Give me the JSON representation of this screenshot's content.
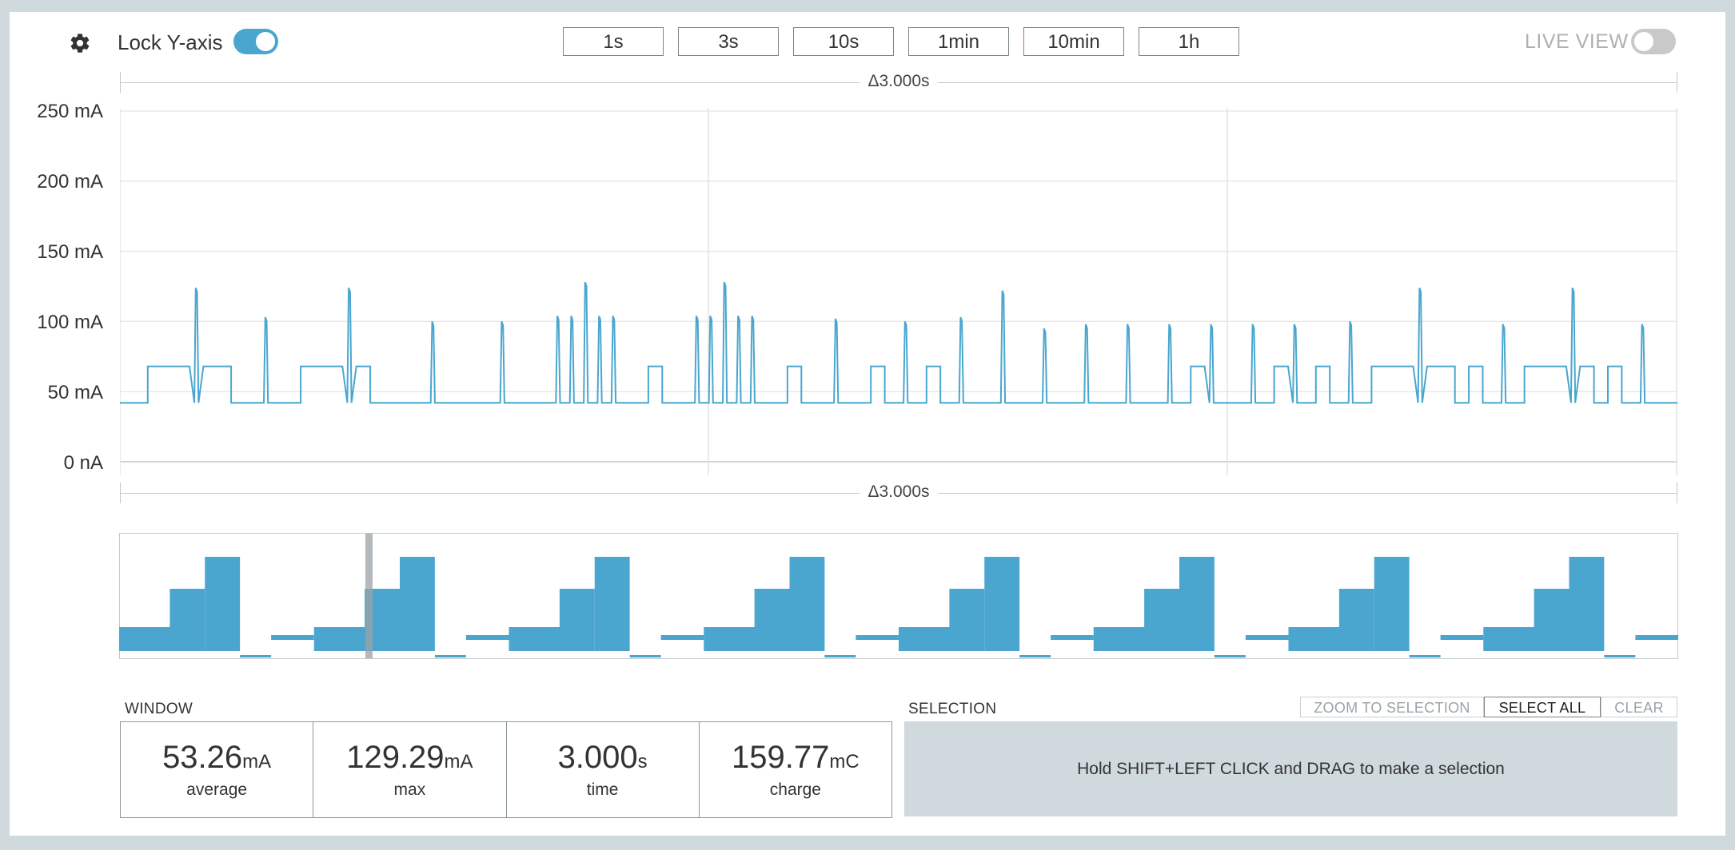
{
  "toolbar": {
    "lock_label": "Lock Y-axis",
    "lock_enabled": true,
    "ranges": [
      "1s",
      "3s",
      "10s",
      "1min",
      "10min",
      "1h"
    ],
    "live_label": "LIVE VIEW",
    "live_enabled": false
  },
  "icons": {
    "settings": "gear-icon"
  },
  "colors": {
    "accent": "#4ba6cf",
    "trace": "#4ba6cf",
    "panel": "#d0d9dd"
  },
  "main_chart": {
    "delta_top": "Δ3.000s",
    "delta_bottom": "Δ3.000s",
    "y_ticks": [
      "250 mA",
      "200 mA",
      "150 mA",
      "100 mA",
      "50 mA",
      "0 nA"
    ]
  },
  "chart_data": {
    "type": "line",
    "title": "",
    "xlabel": "",
    "ylabel": "",
    "ylim": [
      0,
      250
    ],
    "y_unit": "mA",
    "x_window_s": 3.0,
    "baseline_mA": 42,
    "series": [
      {
        "values_mA": [
          42,
          42,
          68,
          68,
          68,
          124,
          68,
          68,
          42,
          42,
          103,
          42,
          42,
          68,
          68,
          68,
          124,
          68,
          42,
          42,
          42,
          42,
          100,
          42,
          42,
          42,
          42,
          100,
          42,
          42,
          42,
          104,
          104,
          128,
          104,
          104,
          42,
          42,
          68,
          42,
          42,
          104,
          104,
          128,
          104,
          104,
          42,
          42,
          68,
          42,
          42,
          102,
          42,
          42,
          68,
          42,
          100,
          42,
          68,
          42,
          103,
          42,
          42,
          122,
          42,
          42,
          95,
          42,
          42,
          98,
          42,
          42,
          98,
          42,
          42,
          98,
          42,
          68,
          98,
          42,
          42,
          98,
          42,
          68,
          98,
          42,
          68,
          42,
          100,
          42,
          68,
          68,
          68,
          124,
          68,
          68,
          42,
          68,
          42,
          98,
          42,
          68,
          68,
          68,
          124,
          68,
          42,
          68,
          42,
          98,
          42,
          42
        ]
      }
    ]
  },
  "overview": {
    "blocks_count": 8,
    "cursor_fraction": 0.16
  },
  "window": {
    "label": "WINDOW",
    "stats": [
      {
        "value": "53.26",
        "unit": "mA",
        "caption": "average"
      },
      {
        "value": "129.29",
        "unit": "mA",
        "caption": "max"
      },
      {
        "value": "3.000",
        "unit": "s",
        "caption": "time"
      },
      {
        "value": "159.77",
        "unit": "mC",
        "caption": "charge"
      }
    ]
  },
  "selection": {
    "label": "SELECTION",
    "zoom_label": "ZOOM TO SELECTION",
    "select_all_label": "SELECT ALL",
    "clear_label": "CLEAR",
    "hint": "Hold SHIFT+LEFT CLICK and DRAG to make a selection"
  }
}
